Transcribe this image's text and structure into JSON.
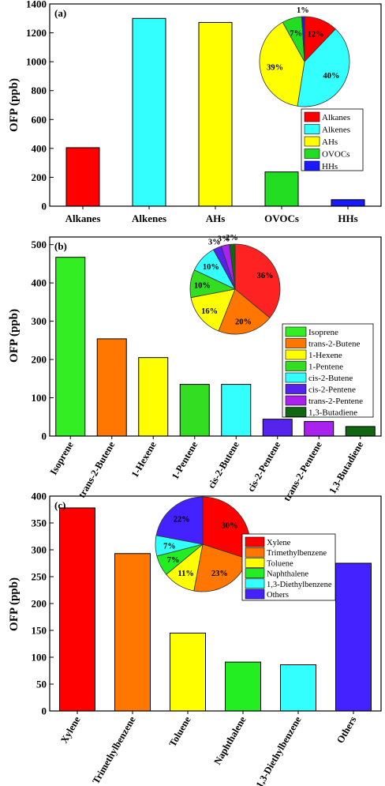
{
  "chart_data": [
    {
      "panel": "(a)",
      "type": "bar",
      "ylabel": "OFP (ppb)",
      "ylim": [
        0,
        1400
      ],
      "yticks": [
        0,
        200,
        400,
        600,
        800,
        1000,
        1200,
        1400
      ],
      "categories": [
        "Alkanes",
        "Alkenes",
        "AHs",
        "OVOCs",
        "HHs"
      ],
      "values": [
        405,
        1300,
        1272,
        237,
        45
      ],
      "colors": [
        "#ff0000",
        "#33ffff",
        "#ffff00",
        "#22dd22",
        "#1a1aff"
      ],
      "pie": {
        "labels": [
          "Alkanes",
          "Alkenes",
          "AHs",
          "OVOCs",
          "HHs"
        ],
        "values": [
          12,
          40,
          39,
          7,
          1
        ],
        "value_labels": [
          "12%",
          "40%",
          "39%",
          "7%",
          "1%"
        ],
        "colors": [
          "#ff0000",
          "#33ffff",
          "#ffff00",
          "#22dd22",
          "#1a1aff"
        ]
      },
      "legend": [
        "Alkanes",
        "Alkenes",
        "AHs",
        "OVOCs",
        "HHs"
      ]
    },
    {
      "panel": "(b)",
      "type": "bar",
      "ylabel": "OFP (ppb)",
      "ylim": [
        0,
        520
      ],
      "yticks": [
        0,
        100,
        200,
        300,
        400,
        500
      ],
      "categories": [
        "Isoprene",
        "trans-2-Butene",
        "1-Hexene",
        "1-Pentene",
        "cis-2-Butene",
        "cis-2-Pentene",
        "trans-2-Pentene",
        "1,3-Butadiene"
      ],
      "values": [
        467,
        254,
        205,
        135,
        135,
        44,
        38,
        25
      ],
      "colors": [
        "#33ee22",
        "#ff7700",
        "#ffff00",
        "#33dd22",
        "#33ffff",
        "#5522ee",
        "#aa22ee",
        "#116611"
      ],
      "pie": {
        "labels": [
          "Isoprene",
          "trans-2-Butene",
          "1-Hexene",
          "1-Pentene",
          "cis-2-Butene",
          "cis-2-Pentene",
          "trans-2-Pentene",
          "1,3-Butadiene"
        ],
        "values": [
          36,
          20,
          16,
          10,
          10,
          3,
          3,
          2
        ],
        "value_labels": [
          "36%",
          "20%",
          "16%",
          "10%",
          "10%",
          "3%",
          "3%",
          "2%"
        ],
        "colors": [
          "#ff2222",
          "#ff7700",
          "#ffff00",
          "#33dd22",
          "#33ffff",
          "#5522ee",
          "#aa22ee",
          "#116611"
        ]
      },
      "legend": [
        "Isoprene",
        "trans-2-Butene",
        "1-Hexene",
        "1-Pentene",
        "cis-2-Butene",
        "cis-2-Pentene",
        "trans-2-Pentene",
        "1,3-Butadiene"
      ]
    },
    {
      "panel": "(c)",
      "type": "bar",
      "ylabel": "OFP (ppb)",
      "ylim": [
        0,
        400
      ],
      "yticks": [
        0,
        50,
        100,
        150,
        200,
        250,
        300,
        350,
        400
      ],
      "categories": [
        "Xylene",
        "Trimethylbenzene",
        "Toluene",
        "Naphthalene",
        "1,3-Diethylbenzene",
        "Others"
      ],
      "values": [
        378,
        293,
        145,
        91,
        86,
        275
      ],
      "colors": [
        "#ff0000",
        "#ff7700",
        "#ffff00",
        "#22ee22",
        "#33ffff",
        "#4422ff"
      ],
      "pie": {
        "labels": [
          "Xylene",
          "Trimethylbenzene",
          "Toluene",
          "Naphthalene",
          "1,3-Diethylbenzene",
          "Others"
        ],
        "values": [
          30,
          23,
          11,
          7,
          7,
          22
        ],
        "value_labels": [
          "30%",
          "23%",
          "11%",
          "7%",
          "7%",
          "22%"
        ],
        "colors": [
          "#ff0000",
          "#ff7700",
          "#ffff00",
          "#22ee22",
          "#33ffff",
          "#4422ff"
        ]
      },
      "legend": [
        "Xylene",
        "Trimethylbenzene",
        "Toluene",
        "Naphthalene",
        "1,3-Diethylbenzene",
        "Others"
      ]
    }
  ]
}
